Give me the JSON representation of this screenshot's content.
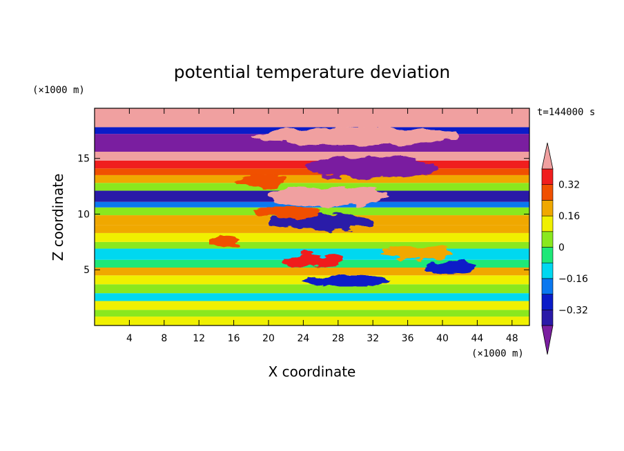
{
  "chart_data": {
    "type": "heatmap",
    "title": "potential temperature deviation",
    "xlabel": "X coordinate",
    "ylabel": "Z coordinate",
    "x_unit": "(×1000 m)",
    "y_unit": "(×1000 m)",
    "time_label": "t=144000 s",
    "xlim": [
      0,
      50
    ],
    "ylim": [
      0,
      19.5
    ],
    "x_ticks": [
      4,
      8,
      12,
      16,
      20,
      24,
      28,
      32,
      36,
      40,
      44,
      48
    ],
    "y_ticks": [
      5,
      10,
      15
    ],
    "colorbar": {
      "levels": [
        -0.4,
        -0.32,
        -0.24,
        -0.16,
        -0.08,
        0,
        0.08,
        0.16,
        0.24,
        0.32,
        0.4
      ],
      "tick_labels": [
        "0.32",
        "0.16",
        "0",
        "−0.16",
        "−0.32"
      ],
      "tick_values": [
        0.32,
        0.16,
        0,
        -0.16,
        -0.32
      ],
      "extend": "both",
      "colors_low_to_high": [
        "#7a1ea0",
        "#2a1aa8",
        "#0a1cc8",
        "#0a78f0",
        "#00d8f0",
        "#1ee878",
        "#8ae81e",
        "#f0f000",
        "#f0a800",
        "#f05000",
        "#f01e1e",
        "#f0a0a0"
      ]
    },
    "z_profile_outer": [
      {
        "z0": 0.0,
        "z1": 0.8,
        "value": 0.1
      },
      {
        "z0": 0.8,
        "z1": 1.4,
        "value": 0.04
      },
      {
        "z0": 1.4,
        "z1": 2.2,
        "value": 0.12
      },
      {
        "z0": 2.2,
        "z1": 2.9,
        "value": -0.12
      },
      {
        "z0": 2.9,
        "z1": 3.7,
        "value": 0.0
      },
      {
        "z0": 3.7,
        "z1": 4.5,
        "value": 0.12
      },
      {
        "z0": 4.5,
        "z1": 5.2,
        "value": 0.2
      },
      {
        "z0": 5.2,
        "z1": 5.9,
        "value": -0.04
      },
      {
        "z0": 5.9,
        "z1": 6.9,
        "value": -0.1
      },
      {
        "z0": 6.9,
        "z1": 7.5,
        "value": 0.04
      },
      {
        "z0": 7.5,
        "z1": 8.3,
        "value": 0.12
      },
      {
        "z0": 8.3,
        "z1": 9.0,
        "value": 0.2
      },
      {
        "z0": 9.0,
        "z1": 9.9,
        "value": 0.2
      },
      {
        "z0": 9.9,
        "z1": 10.6,
        "value": 0.02
      },
      {
        "z0": 10.6,
        "z1": 11.1,
        "value": -0.2
      },
      {
        "z0": 11.1,
        "z1": 12.1,
        "value": -0.35
      },
      {
        "z0": 12.1,
        "z1": 12.8,
        "value": 0.04
      },
      {
        "z0": 12.8,
        "z1": 13.5,
        "value": 0.2
      },
      {
        "z0": 13.5,
        "z1": 14.1,
        "value": 0.28
      },
      {
        "z0": 14.1,
        "z1": 14.8,
        "value": 0.36
      },
      {
        "z0": 14.8,
        "z1": 15.6,
        "value": 0.45
      },
      {
        "z0": 15.6,
        "z1": 17.2,
        "value": -0.45
      },
      {
        "z0": 17.2,
        "z1": 17.8,
        "value": -0.3
      },
      {
        "z0": 17.8,
        "z1": 19.5,
        "value": 0.45
      }
    ],
    "features": [
      {
        "x": 25,
        "z": 5.8,
        "rx": 3.5,
        "rz": 0.6,
        "value": 0.32
      },
      {
        "x": 29,
        "z": 4.0,
        "rx": 5.0,
        "rz": 0.5,
        "value": -0.3
      },
      {
        "x": 26,
        "z": 9.3,
        "rx": 6.0,
        "rz": 0.7,
        "value": -0.38
      },
      {
        "x": 27,
        "z": 11.6,
        "rx": 7.0,
        "rz": 0.9,
        "value": 0.45
      },
      {
        "x": 32,
        "z": 14.2,
        "rx": 7.5,
        "rz": 1.0,
        "value": -0.45
      },
      {
        "x": 22,
        "z": 10.2,
        "rx": 4.0,
        "rz": 0.5,
        "value": 0.3
      },
      {
        "x": 37,
        "z": 6.5,
        "rx": 4.0,
        "rz": 0.6,
        "value": 0.22
      },
      {
        "x": 41,
        "z": 5.3,
        "rx": 3.0,
        "rz": 0.5,
        "value": -0.25
      },
      {
        "x": 15,
        "z": 7.5,
        "rx": 1.8,
        "rz": 0.5,
        "value": 0.3
      },
      {
        "x": 30,
        "z": 17.0,
        "rx": 12.0,
        "rz": 0.8,
        "value": 0.45
      },
      {
        "x": 19,
        "z": 13.0,
        "rx": 3.0,
        "rz": 0.6,
        "value": 0.3
      }
    ]
  }
}
